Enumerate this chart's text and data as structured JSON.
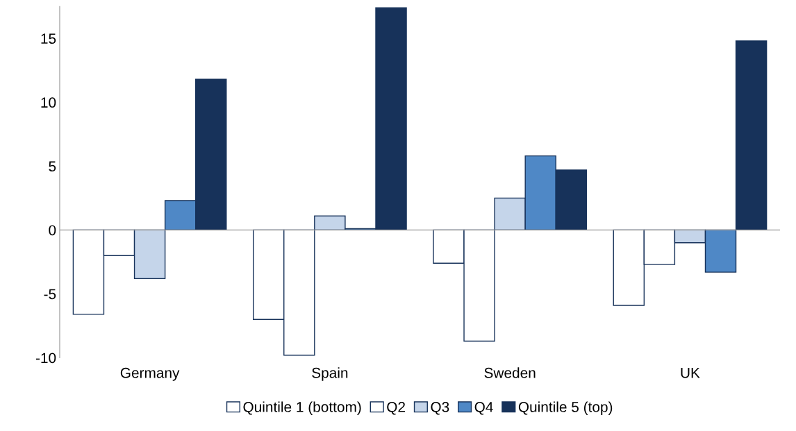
{
  "chart_data": {
    "type": "bar",
    "categories": [
      "Germany",
      "Spain",
      "Sweden",
      "UK"
    ],
    "series": [
      {
        "name": "Quintile 1 (bottom)",
        "color": "#ffffff",
        "values": [
          -6.6,
          -7.0,
          -2.6,
          -5.9
        ]
      },
      {
        "name": "Q2",
        "color": "#ffffff",
        "values": [
          -2.0,
          -9.8,
          -8.7,
          -2.7
        ]
      },
      {
        "name": "Q3",
        "color": "#c5d5ea",
        "values": [
          -3.8,
          1.1,
          2.5,
          -1.0
        ]
      },
      {
        "name": "Q4",
        "color": "#4f88c6",
        "values": [
          2.3,
          0.1,
          5.8,
          -3.3
        ]
      },
      {
        "name": "Quintile 5 (top)",
        "color": "#17325a",
        "values": [
          11.8,
          17.4,
          4.7,
          14.8
        ]
      }
    ],
    "ylim": [
      -10,
      17.5
    ],
    "yticks": [
      -10,
      -5,
      0,
      5,
      10,
      15
    ],
    "legend": "bottom"
  }
}
